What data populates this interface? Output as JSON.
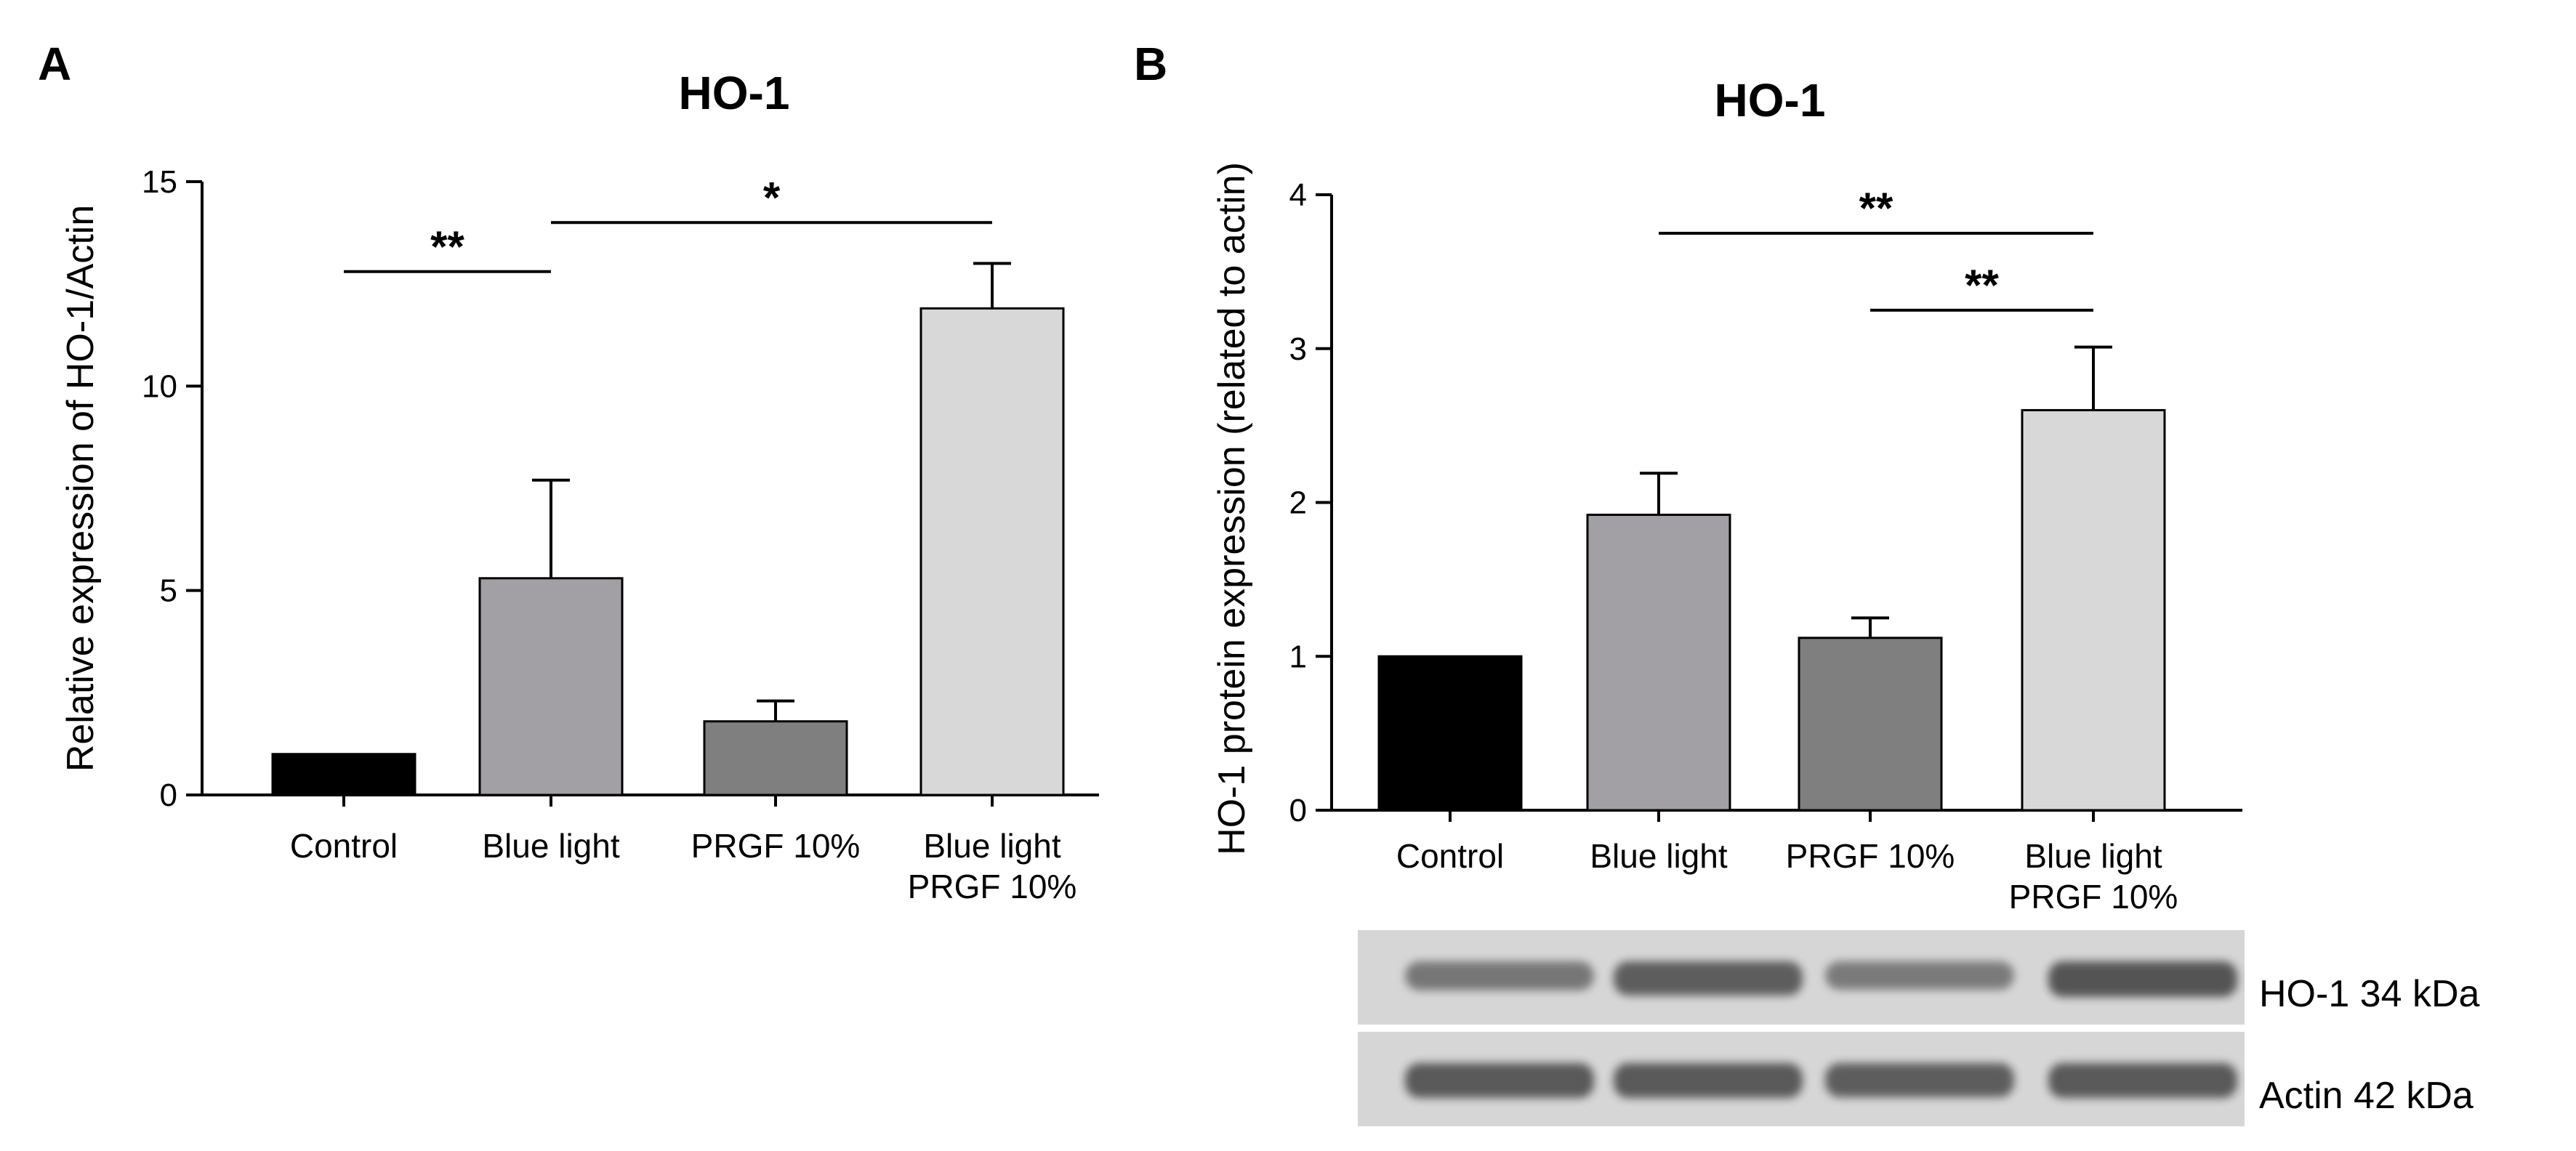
{
  "colors": {
    "control": "#000000",
    "blue_light": "#a2a0a5",
    "prgf": "#7f7f7f",
    "blue_light_prgf": "#d8d8d8",
    "band": "#4a4a4a"
  },
  "chart_data": [
    {
      "type": "bar",
      "panel": "A",
      "title": "HO-1",
      "xlabel": "",
      "ylabel": "Relative expression of HO-1/Actin",
      "categories": [
        "Control",
        "Blue light",
        "PRGF 10%",
        "Blue light PRGF 10%"
      ],
      "category_lines": [
        [
          "Control"
        ],
        [
          "Blue light"
        ],
        [
          "PRGF 10%"
        ],
        [
          "Blue light",
          "PRGF 10%"
        ]
      ],
      "values": [
        1.0,
        5.3,
        1.8,
        11.9
      ],
      "errors": [
        0,
        2.4,
        0.5,
        1.1
      ],
      "ylim": [
        0,
        15
      ],
      "yticks": [
        "0",
        "5",
        "10",
        "15"
      ],
      "significance": [
        {
          "from": 0,
          "to": 1,
          "y": 12.8,
          "label": "**"
        },
        {
          "from": 1,
          "to": 3,
          "y": 14.0,
          "label": "*"
        }
      ]
    },
    {
      "type": "bar",
      "panel": "B",
      "title": "HO-1",
      "xlabel": "",
      "ylabel": "HO-1 protein expression (related to actin)",
      "categories": [
        "Control",
        "Blue light",
        "PRGF 10%",
        "Blue light PRGF 10%"
      ],
      "category_lines": [
        [
          "Control"
        ],
        [
          "Blue light"
        ],
        [
          "PRGF 10%"
        ],
        [
          "Blue light",
          "PRGF 10%"
        ]
      ],
      "values": [
        1.0,
        1.92,
        1.12,
        2.6
      ],
      "errors": [
        0,
        0.27,
        0.13,
        0.41
      ],
      "ylim": [
        0,
        4
      ],
      "yticks": [
        "0",
        "1",
        "2",
        "3",
        "4"
      ],
      "significance": [
        {
          "from": 1,
          "to": 3,
          "y": 3.75,
          "label": "**"
        },
        {
          "from": 2,
          "to": 3,
          "y": 3.25,
          "label": "**"
        }
      ]
    }
  ],
  "western_blot": {
    "bands": [
      {
        "label": "HO-1 34 kDa",
        "intensity": [
          0.55,
          0.85,
          0.5,
          0.95
        ]
      },
      {
        "label": "Actin 42 kDa",
        "intensity": [
          0.9,
          0.9,
          0.85,
          0.9
        ]
      }
    ]
  }
}
